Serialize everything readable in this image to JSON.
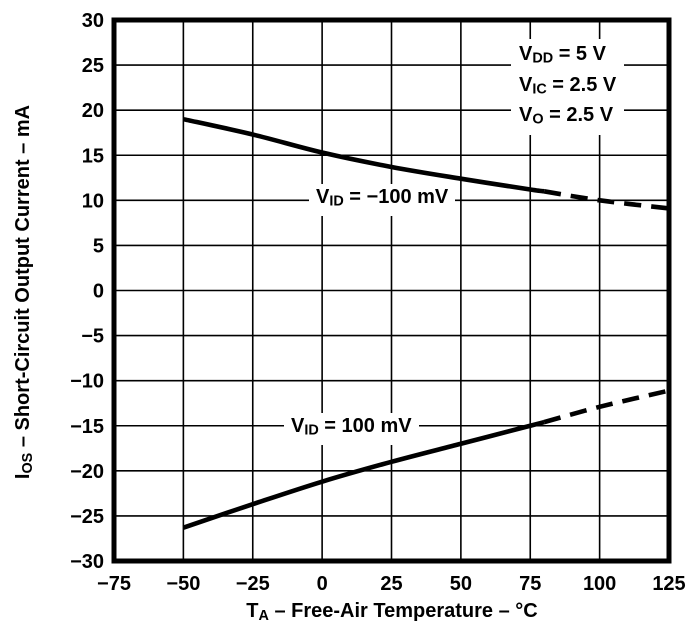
{
  "figure": {
    "background_color": "#ffffff",
    "ink_color": "#000000"
  },
  "chart_data": {
    "type": "line",
    "title": "",
    "xlabel": "T_{A} – Free-Air Temperature – °C",
    "ylabel": "I_{OS} – Short-Circuit Output Current – mA",
    "xlim": [
      -75,
      125
    ],
    "ylim": [
      -30,
      30
    ],
    "x_ticks": [
      -75,
      -50,
      -25,
      0,
      25,
      50,
      75,
      100,
      125
    ],
    "y_ticks": [
      30,
      25,
      20,
      15,
      10,
      5,
      0,
      -5,
      -10,
      -15,
      -20,
      -25,
      -30
    ],
    "grid": "on",
    "legend_position": "inline-curve-labels",
    "conditions": [
      "V_{DD} = 5 V",
      "V_{IC} = 2.5 V",
      "V_{O} = 2.5 V"
    ],
    "series": [
      {
        "name": "V_{ID} = −100 mV",
        "x": [
          -50,
          -25,
          0,
          25,
          50,
          75,
          80,
          100,
          125
        ],
        "y": [
          19.0,
          17.3,
          15.3,
          13.7,
          12.4,
          11.2,
          11.0,
          10.0,
          9.1
        ],
        "dash_from_x": 80,
        "line_style": "solid-then-dashed"
      },
      {
        "name": "V_{ID} = 100 mV",
        "x": [
          -50,
          -25,
          0,
          25,
          50,
          75,
          80,
          100,
          125
        ],
        "y": [
          -26.3,
          -23.7,
          -21.2,
          -19.0,
          -17.0,
          -15.0,
          -14.6,
          -12.9,
          -11.1
        ],
        "dash_from_x": 80,
        "line_style": "solid-then-dashed"
      }
    ]
  }
}
